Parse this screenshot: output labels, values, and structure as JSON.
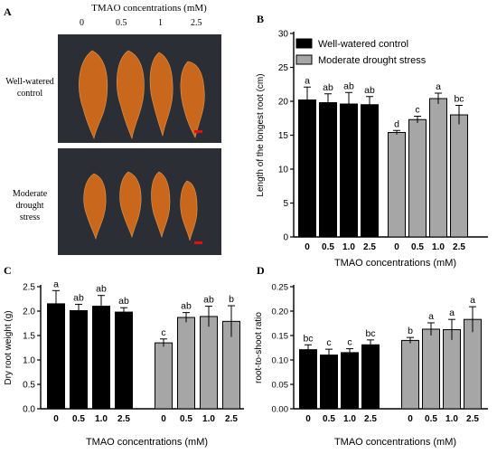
{
  "panels": {
    "A": "A",
    "B": "B",
    "C": "C",
    "D": "D"
  },
  "photo": {
    "title": "TMAO concentrations (mM)",
    "concentrations": [
      "0",
      "0.5",
      "1",
      "2.5"
    ],
    "row1_label": [
      "Well-watered",
      "control"
    ],
    "row2_label": [
      "Moderate",
      "drought",
      "stress"
    ]
  },
  "colors": {
    "control": "#000000",
    "drought": "#a6a6a6",
    "photo_bg": "#2b2e35",
    "root": "#c9681c",
    "scale_bar": "#e01010"
  },
  "chart_data": [
    {
      "id": "B",
      "type": "bar",
      "categories": [
        "0",
        "0.5",
        "1.0",
        "2.5"
      ],
      "xlabel": "TMAO concentrations (mM)",
      "ylabel": "Length of the longest root (cm)",
      "ylim": [
        0,
        30
      ],
      "yticks": [
        0,
        5,
        10,
        15,
        20,
        25,
        30
      ],
      "legend": "top-left",
      "series": [
        {
          "name": "Well-watered control",
          "values": [
            20.2,
            19.8,
            19.6,
            19.5
          ],
          "errors": [
            1.9,
            1.3,
            1.7,
            1.2
          ],
          "letters": [
            "a",
            "ab",
            "ab",
            "ab"
          ]
        },
        {
          "name": "Moderate drought stress",
          "values": [
            15.4,
            17.3,
            20.4,
            18.0
          ],
          "errors": [
            0.3,
            0.5,
            0.8,
            1.4
          ],
          "letters": [
            "d",
            "c",
            "a",
            "bc"
          ]
        }
      ]
    },
    {
      "id": "C",
      "type": "bar",
      "categories": [
        "0",
        "0.5",
        "1.0",
        "2.5"
      ],
      "xlabel": "TMAO concentrations (mM)",
      "ylabel": "Dry root weight (g)",
      "ylim": [
        0,
        2.5
      ],
      "yticks": [
        0,
        0.5,
        1.0,
        1.5,
        2.0,
        2.5
      ],
      "series": [
        {
          "name": "",
          "values": [
            2.15,
            2.01,
            2.1,
            1.98
          ],
          "errors": [
            0.27,
            0.13,
            0.22,
            0.09
          ],
          "letters": [
            "a",
            "ab",
            "ab",
            "ab"
          ]
        },
        {
          "name": "",
          "values": [
            1.35,
            1.87,
            1.89,
            1.79
          ],
          "errors": [
            0.08,
            0.1,
            0.21,
            0.32
          ],
          "letters": [
            "c",
            "ab",
            "ab",
            "b"
          ]
        }
      ]
    },
    {
      "id": "D",
      "type": "bar",
      "categories": [
        "0",
        "0.5",
        "1.0",
        "2.5"
      ],
      "xlabel": "TMAO concentrations (mM)",
      "ylabel": "root-to-shoot ratio",
      "ylim": [
        0,
        0.25
      ],
      "yticks": [
        0.0,
        0.05,
        0.1,
        0.15,
        0.2,
        0.25
      ],
      "series": [
        {
          "name": "",
          "values": [
            0.121,
            0.11,
            0.115,
            0.131
          ],
          "errors": [
            0.01,
            0.012,
            0.008,
            0.01
          ],
          "letters": [
            "bc",
            "c",
            "c",
            "bc"
          ]
        },
        {
          "name": "",
          "values": [
            0.14,
            0.163,
            0.162,
            0.183
          ],
          "errors": [
            0.006,
            0.013,
            0.021,
            0.026
          ],
          "letters": [
            "b",
            "a",
            "a",
            "a"
          ]
        }
      ]
    }
  ]
}
